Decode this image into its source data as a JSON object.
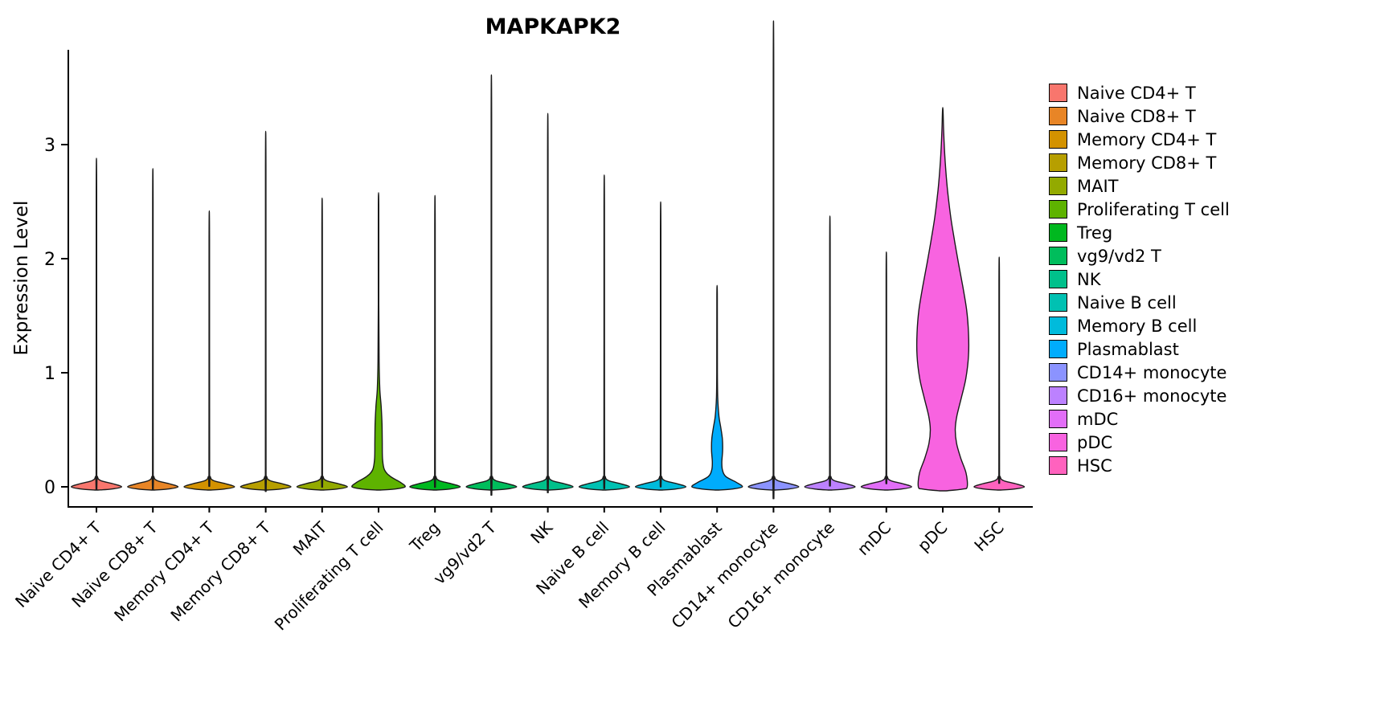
{
  "title": "MAPKAPK2",
  "chart_data": {
    "type": "violin",
    "title": "MAPKAPK2",
    "xlabel": "",
    "ylabel": "Expression Level",
    "yticks": [
      0,
      1,
      2,
      3
    ],
    "ylim": [
      -0.18,
      3.83
    ],
    "grid": false,
    "legend_position": "right",
    "categories": [
      "Naive CD4+ T",
      "Naive CD8+ T",
      "Memory CD4+ T",
      "Memory CD8+ T",
      "MAIT",
      "Proliferating T cell",
      "Treg",
      "vg9/vd2 T",
      "NK",
      "Naive B cell",
      "Memory B cell",
      "Plasmablast",
      "CD14+ monocyte",
      "CD16+ monocyte",
      "mDC",
      "pDC",
      "HSC"
    ],
    "series": [
      {
        "name": "Naive CD4+ T",
        "color": "#F8766D",
        "max": 2.58
      },
      {
        "name": "Naive CD8+ T",
        "color": "#E88526",
        "max": 2.5
      },
      {
        "name": "Memory CD4+ T",
        "color": "#D39200",
        "max": 2.17
      },
      {
        "name": "Memory CD8+ T",
        "color": "#B79F00",
        "max": 2.79
      },
      {
        "name": "MAIT",
        "color": "#93AA00",
        "max": 2.27
      },
      {
        "name": "Proliferating T cell",
        "color": "#5EB300",
        "max": 2.47,
        "profile": [
          [
            -0.028,
            0.07
          ],
          [
            -0.02,
            0.6
          ],
          [
            0,
            1.0
          ],
          [
            0.04,
            0.82
          ],
          [
            0.09,
            0.45
          ],
          [
            0.15,
            0.22
          ],
          [
            0.25,
            0.15
          ],
          [
            0.4,
            0.14
          ],
          [
            0.55,
            0.13
          ],
          [
            0.7,
            0.1
          ],
          [
            0.85,
            0.05
          ],
          [
            1.1,
            0.02
          ],
          [
            1.6,
            0.01
          ],
          [
            2.47,
            0.008
          ]
        ]
      },
      {
        "name": "Treg",
        "color": "#00B81F",
        "max": 2.29
      },
      {
        "name": "vg9/vd2 T",
        "color": "#00BD5C",
        "max": 3.23
      },
      {
        "name": "NK",
        "color": "#00C08B",
        "max": 2.93
      },
      {
        "name": "Naive B cell",
        "color": "#00C1B2",
        "max": 2.45
      },
      {
        "name": "Memory B cell",
        "color": "#00BBDC",
        "max": 2.24
      },
      {
        "name": "Plasmablast",
        "color": "#00ACFC",
        "max": 1.68,
        "profile": [
          [
            -0.028,
            0.07
          ],
          [
            -0.02,
            0.55
          ],
          [
            0,
            0.95
          ],
          [
            0.04,
            0.72
          ],
          [
            0.09,
            0.33
          ],
          [
            0.15,
            0.2
          ],
          [
            0.22,
            0.18
          ],
          [
            0.32,
            0.21
          ],
          [
            0.42,
            0.2
          ],
          [
            0.52,
            0.14
          ],
          [
            0.62,
            0.07
          ],
          [
            0.78,
            0.025
          ],
          [
            1.0,
            0.012
          ],
          [
            1.68,
            0.008
          ]
        ]
      },
      {
        "name": "CD14+ monocyte",
        "color": "#8B93FF",
        "max": 3.65
      },
      {
        "name": "CD16+ monocyte",
        "color": "#BC81FF",
        "max": 2.13
      },
      {
        "name": "mDC",
        "color": "#E26EF7",
        "max": 1.85
      },
      {
        "name": "pDC",
        "color": "#F863E0",
        "max": 3.3,
        "profile": [
          [
            -0.035,
            0.12
          ],
          [
            -0.02,
            0.75
          ],
          [
            0,
            0.92
          ],
          [
            0.12,
            0.88
          ],
          [
            0.25,
            0.68
          ],
          [
            0.38,
            0.52
          ],
          [
            0.5,
            0.47
          ],
          [
            0.62,
            0.53
          ],
          [
            0.78,
            0.7
          ],
          [
            0.95,
            0.87
          ],
          [
            1.15,
            0.97
          ],
          [
            1.35,
            0.97
          ],
          [
            1.55,
            0.9
          ],
          [
            1.75,
            0.76
          ],
          [
            1.95,
            0.6
          ],
          [
            2.15,
            0.45
          ],
          [
            2.35,
            0.31
          ],
          [
            2.6,
            0.18
          ],
          [
            2.85,
            0.09
          ],
          [
            3.1,
            0.035
          ],
          [
            3.3,
            0.01
          ]
        ]
      },
      {
        "name": "HSC",
        "color": "#FF62BE",
        "max": 1.81
      }
    ]
  }
}
